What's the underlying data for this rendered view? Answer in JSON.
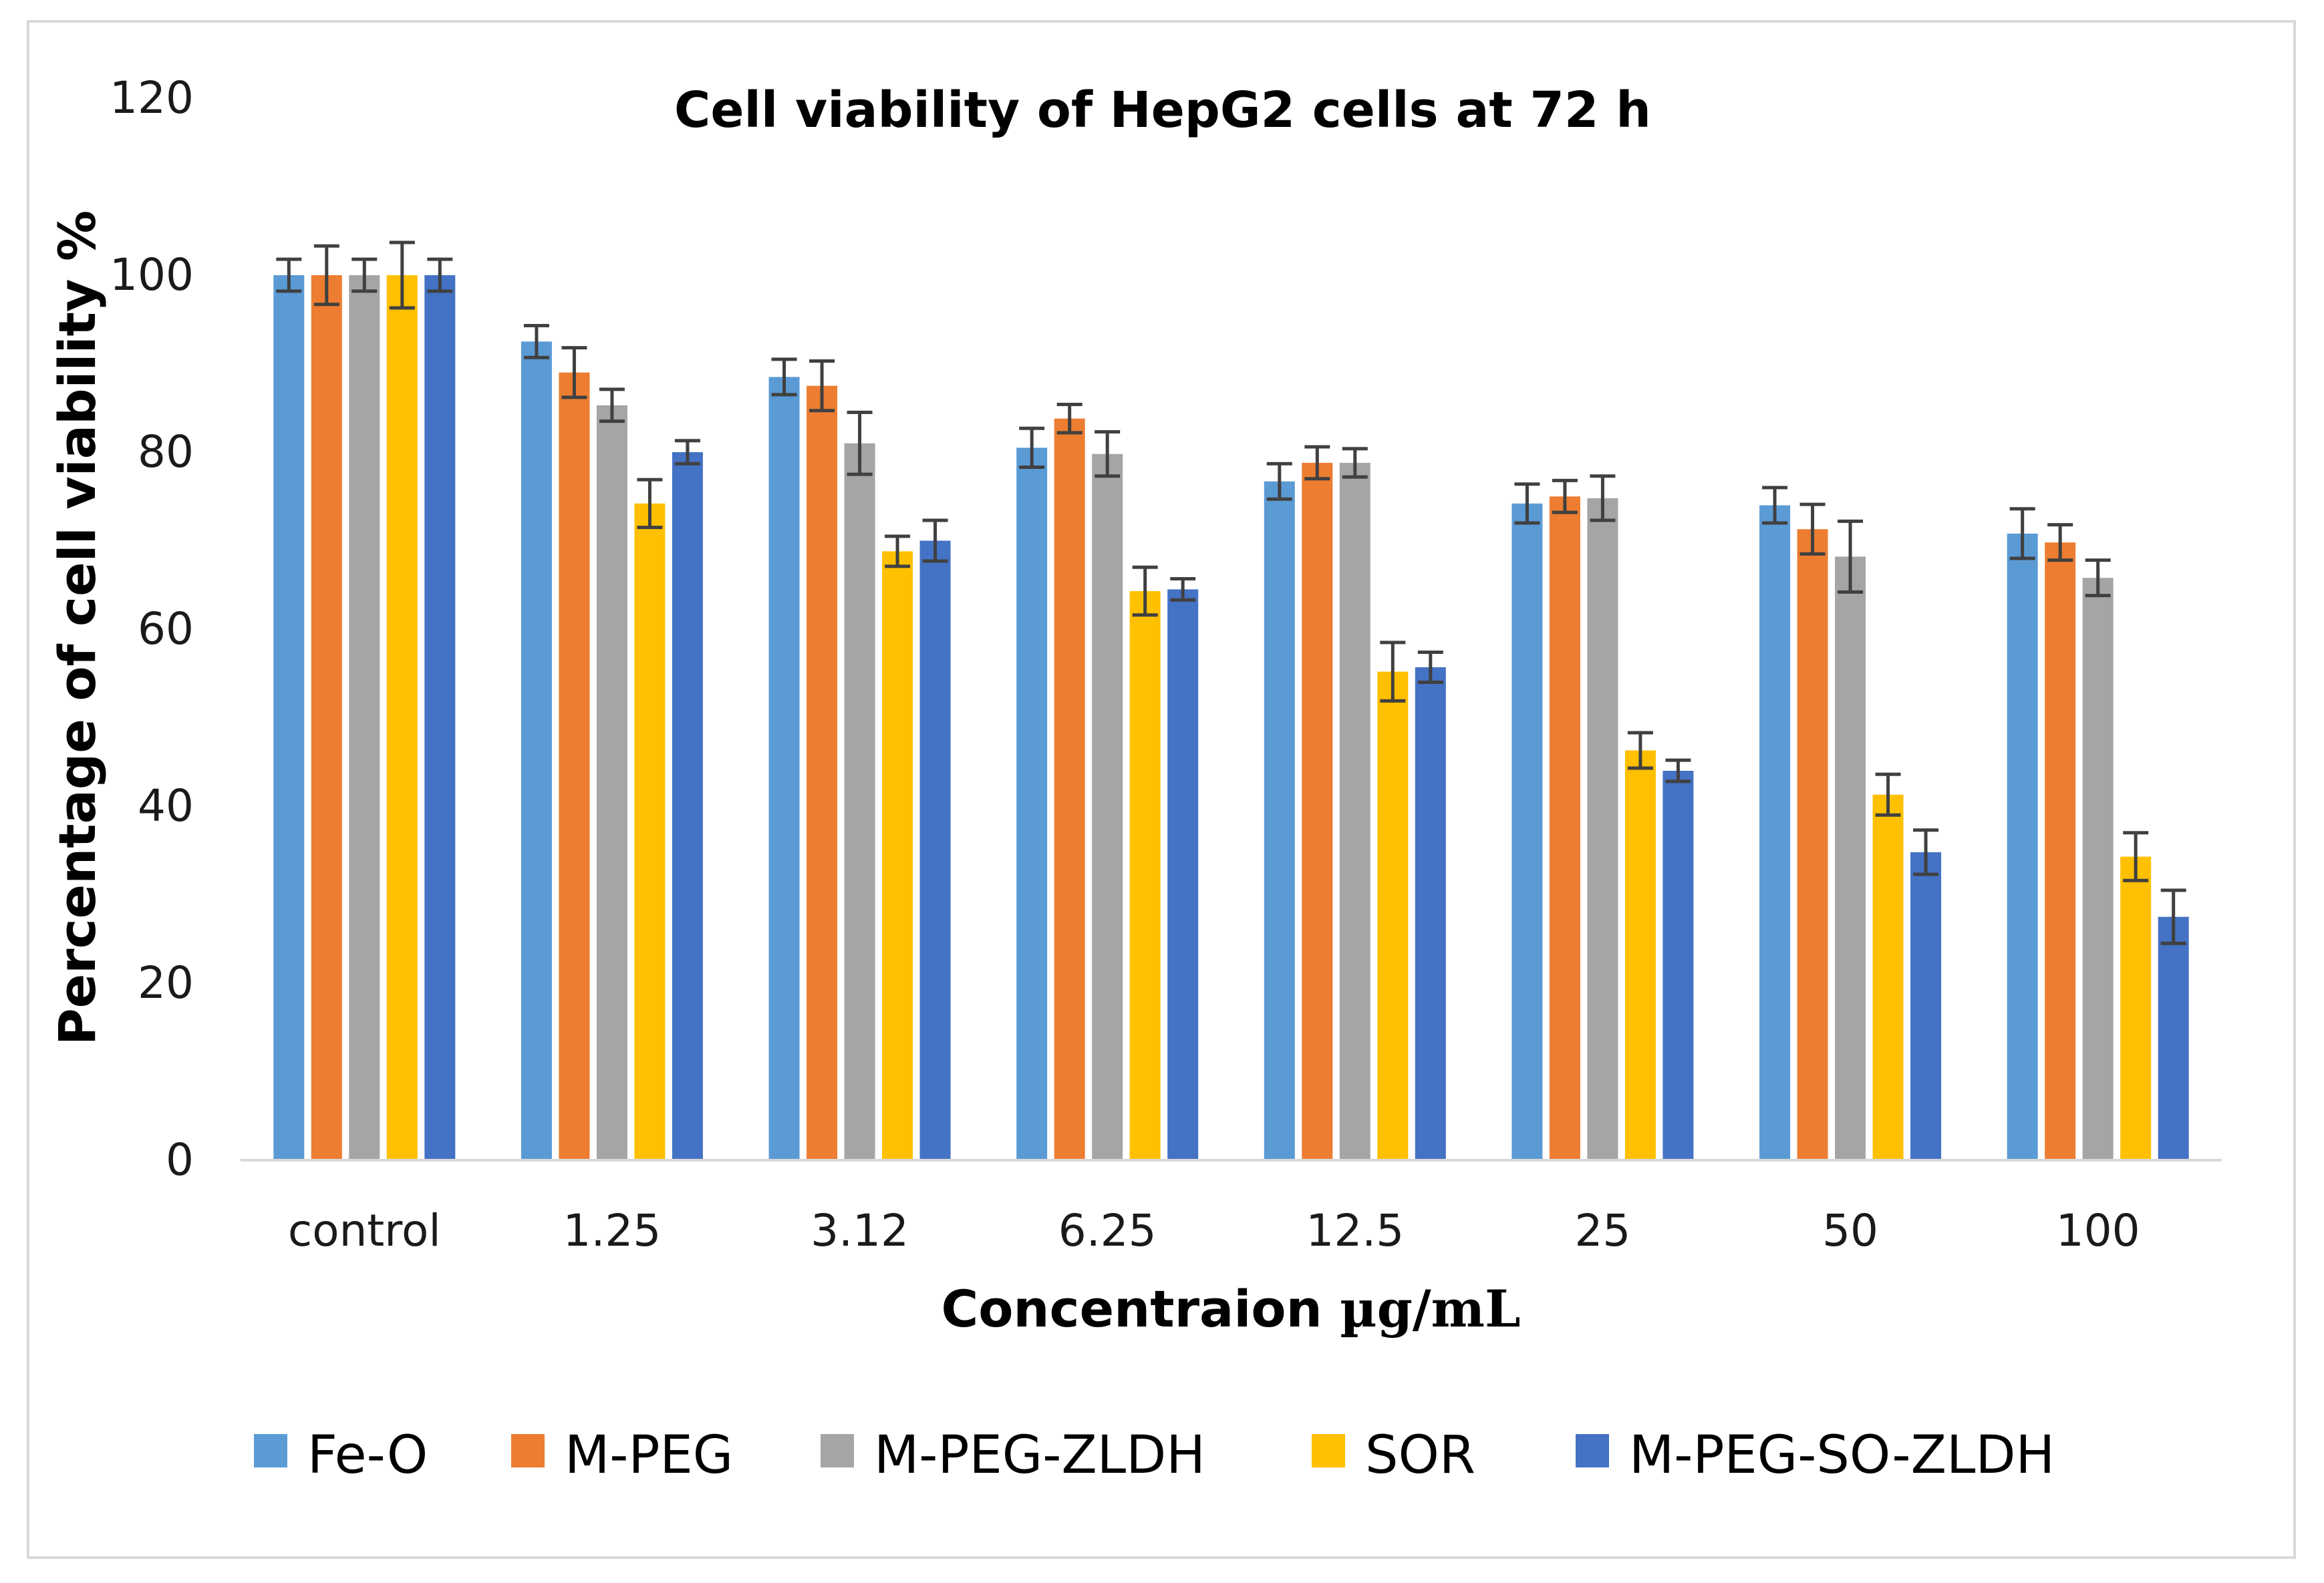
{
  "chart_data": {
    "type": "bar",
    "title": "Cell viability of HepG2 cells at 72 h",
    "xlabel_prefix": "Concentraion ",
    "xlabel_unit": "µg/mL",
    "ylabel": "Percentage of cell viability %",
    "ylim": [
      0,
      120
    ],
    "yticks": [
      0,
      20,
      40,
      60,
      80,
      100,
      120
    ],
    "grid": false,
    "legend_position": "bottom",
    "categories": [
      "control",
      "1.25",
      "3.12",
      "6.25",
      "12.5",
      "25",
      "50",
      "100"
    ],
    "series": [
      {
        "name": "Fe-O",
        "color": "#5B9BD5",
        "values": [
          100,
          92.5,
          88.5,
          80.5,
          76.7,
          74.2,
          74.0,
          70.8
        ],
        "errors": [
          1.8,
          1.8,
          2.0,
          2.2,
          2.0,
          2.2,
          2.0,
          2.8
        ]
      },
      {
        "name": "M-PEG",
        "color": "#ED7D31",
        "values": [
          100,
          89.0,
          87.5,
          83.8,
          78.8,
          75.0,
          71.3,
          69.8
        ],
        "errors": [
          3.3,
          2.8,
          2.8,
          1.6,
          1.8,
          1.8,
          2.8,
          2.0
        ]
      },
      {
        "name": "M-PEG-ZLDH",
        "color": "#A5A5A5",
        "values": [
          100,
          85.3,
          81.0,
          79.8,
          78.8,
          74.8,
          68.2,
          65.8
        ],
        "errors": [
          1.8,
          1.8,
          3.5,
          2.5,
          1.6,
          2.5,
          4.0,
          2.0
        ]
      },
      {
        "name": "SOR",
        "color": "#FFC000",
        "values": [
          100,
          74.2,
          68.8,
          64.3,
          55.2,
          46.3,
          41.3,
          34.3
        ],
        "errors": [
          3.7,
          2.7,
          1.7,
          2.7,
          3.3,
          2.0,
          2.3,
          2.7
        ]
      },
      {
        "name": "M-PEG-SO-ZLDH",
        "color": "#4472C4",
        "values": [
          100,
          80.0,
          70.0,
          64.5,
          55.7,
          44.0,
          34.8,
          27.5
        ],
        "errors": [
          1.8,
          1.3,
          2.3,
          1.2,
          1.7,
          1.2,
          2.5,
          3.0
        ]
      }
    ],
    "error_bar_color": "#404040",
    "axis_color": "#d9d9d9"
  }
}
